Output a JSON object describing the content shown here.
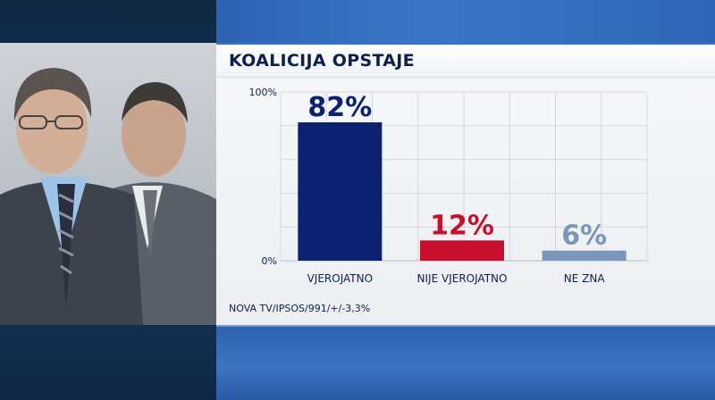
{
  "title": "KOALICIJA OPSTAJE",
  "source": "NOVA TV/IPSOS/991/+/-3,3%",
  "colors": {
    "accent": "#0c2270",
    "red": "#c8102e",
    "grey_blue": "#7a97bb"
  },
  "chart_data": {
    "type": "bar",
    "title": "KOALICIJA OPSTAJE",
    "categories": [
      "VJEROJATNO",
      "NIJE VJEROJATNO",
      "NE ZNA"
    ],
    "values": [
      82,
      12,
      6
    ],
    "value_labels": [
      "82%",
      "12%",
      "6%"
    ],
    "bar_colors": [
      "#0c2270",
      "#c8102e",
      "#7a97bb"
    ],
    "ylim": [
      0,
      100
    ],
    "yticks": [
      "0%",
      "100%"
    ],
    "grid": true
  }
}
